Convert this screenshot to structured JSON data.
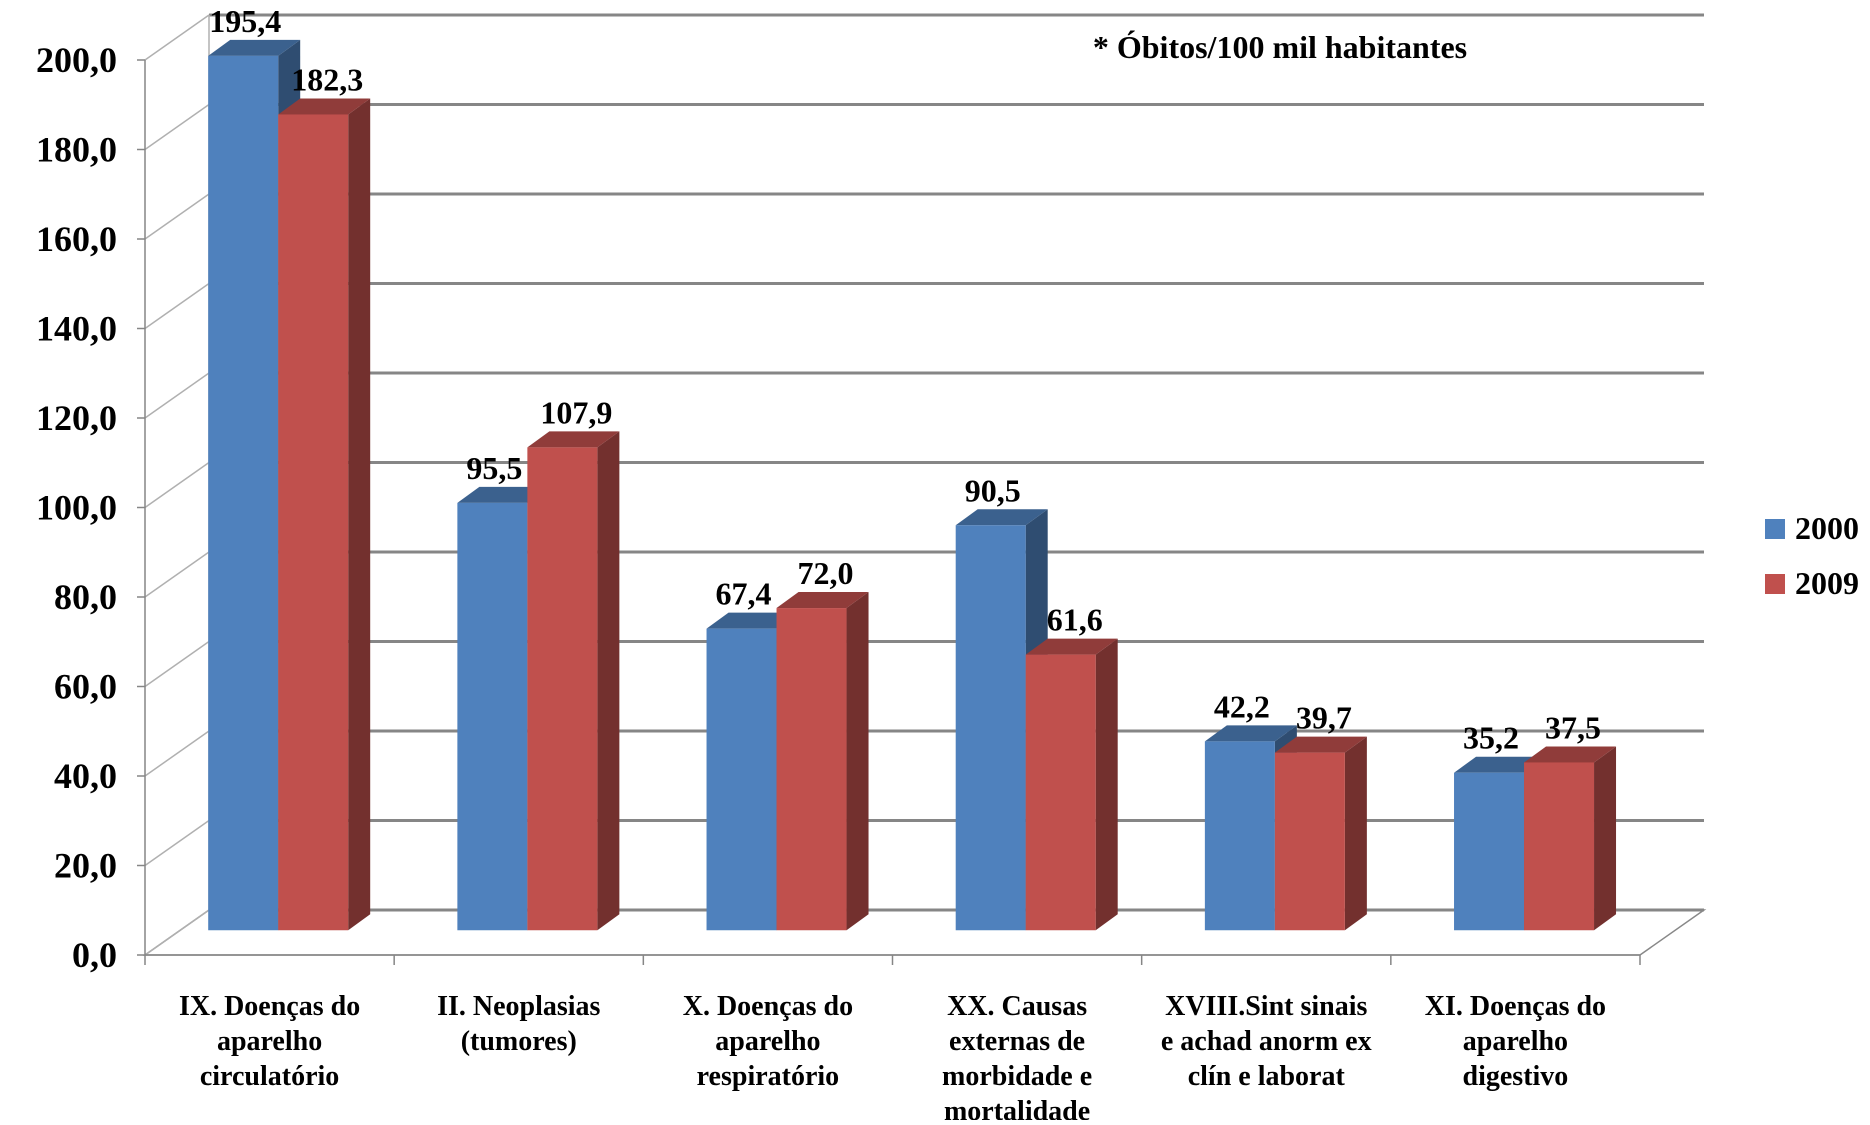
{
  "chart_data": {
    "type": "bar",
    "style": "3d-clustered-column",
    "annotation": "* Óbitos/100 mil habitantes",
    "ylim": [
      0,
      200
    ],
    "ytick_labels": [
      "0,0",
      "20,0",
      "40,0",
      "60,0",
      "80,0",
      "100,0",
      "120,0",
      "140,0",
      "160,0",
      "180,0",
      "200,0"
    ],
    "grid": true,
    "legend_position": "right",
    "categories": [
      [
        "IX.  Doenças do",
        "aparelho",
        "circulatório"
      ],
      [
        "II.  Neoplasias",
        "(tumores)"
      ],
      [
        "X.   Doenças do",
        "aparelho",
        "respiratório"
      ],
      [
        "XX.  Causas",
        "externas de",
        "morbidade e",
        "mortalidade"
      ],
      [
        "XVIII.Sint sinais",
        "e achad anorm ex",
        "clín e laborat"
      ],
      [
        "XI.  Doenças do",
        "aparelho",
        "digestivo"
      ]
    ],
    "series": [
      {
        "name": "2000",
        "color": "#4F81BD",
        "values": [
          195.4,
          95.5,
          67.4,
          90.5,
          42.2,
          35.2
        ],
        "labels": [
          "195,4",
          "95,5",
          "67,4",
          "90,5",
          "42,2",
          "35,2"
        ]
      },
      {
        "name": "2009",
        "color": "#C0504D",
        "values": [
          182.3,
          107.9,
          72.0,
          61.6,
          39.7,
          37.5
        ],
        "labels": [
          "182,3",
          "107,9",
          "72,0",
          "61,6",
          "39,7",
          "37,5"
        ]
      }
    ]
  }
}
